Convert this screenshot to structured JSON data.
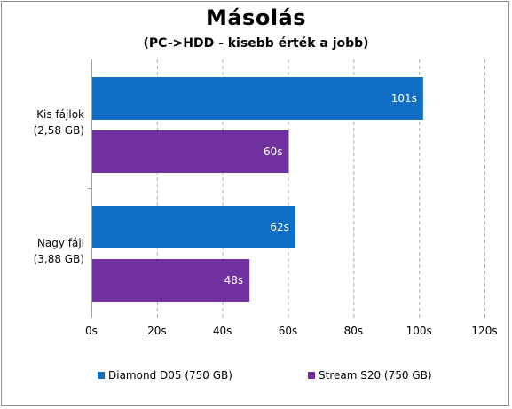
{
  "chart_data": {
    "type": "bar",
    "orientation": "horizontal",
    "title": "Másolás",
    "subtitle": "(PC->HDD - kisebb érték a jobb)",
    "categories": [
      {
        "line1": "Kis fájlok",
        "line2": "(2,58 GB)"
      },
      {
        "line1": "Nagy fájl",
        "line2": "(3,88 GB)"
      }
    ],
    "series": [
      {
        "name": "Diamond D05 (750 GB)",
        "color": "#0f6fc6",
        "values": [
          101,
          62
        ],
        "labels": [
          "101s",
          "62s"
        ]
      },
      {
        "name": "Stream S20 (750 GB)",
        "color": "#7030a0",
        "values": [
          60,
          48
        ],
        "labels": [
          "60s",
          "48s"
        ]
      }
    ],
    "xlim": [
      0,
      120
    ],
    "xticks": [
      {
        "value": 0,
        "label": "0s"
      },
      {
        "value": 20,
        "label": "20s"
      },
      {
        "value": 40,
        "label": "40s"
      },
      {
        "value": 60,
        "label": "60s"
      },
      {
        "value": 80,
        "label": "80s"
      },
      {
        "value": 100,
        "label": "100s"
      },
      {
        "value": 120,
        "label": "120s"
      }
    ],
    "grid": true,
    "legend_position": "bottom"
  }
}
